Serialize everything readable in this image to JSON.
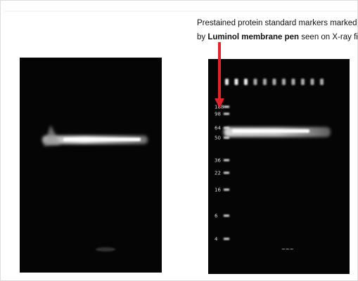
{
  "annotation": {
    "line1": "Prestained protein standard markers marked",
    "line2_start": "by",
    "emphasis": "Luminol membrane pen",
    "line2_end": "seen on X-ray film."
  },
  "marker_labels": [
    "188",
    "98",
    "64",
    "50",
    "36",
    "22",
    "16",
    "6",
    "4"
  ]
}
